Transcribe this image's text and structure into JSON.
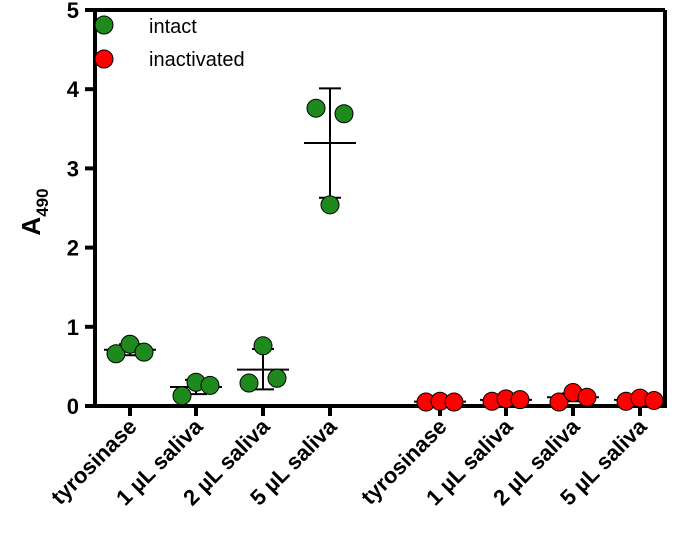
{
  "chart_data": {
    "type": "scatter",
    "ylabel": "A",
    "ylabel_subscript": "490",
    "ylim": [
      0,
      5
    ],
    "yticks": [
      "0",
      "1",
      "2",
      "3",
      "4",
      "5"
    ],
    "legend_position": "top-left",
    "colors": {
      "intact": "#1e8a1e",
      "inactivated": "#ff0000"
    },
    "series": [
      {
        "name": "intact",
        "color": "#1e8a1e"
      },
      {
        "name": "inactivated",
        "color": "#ff0000"
      }
    ],
    "groups": [
      {
        "label": "tyrosinase",
        "series": "intact",
        "points": [
          0.66,
          0.78,
          0.68
        ],
        "mean": 0.71,
        "err_low": 0.64,
        "err_high": 0.78
      },
      {
        "label": "1 µL saliva",
        "series": "intact",
        "points": [
          0.13,
          0.3,
          0.26
        ],
        "mean": 0.24,
        "err_low": 0.15,
        "err_high": 0.33
      },
      {
        "label": "2 µL saliva",
        "series": "intact",
        "points": [
          0.29,
          0.76,
          0.35
        ],
        "mean": 0.46,
        "err_low": 0.21,
        "err_high": 0.72
      },
      {
        "label": "5 µL saliva",
        "series": "intact",
        "points": [
          3.76,
          2.54,
          3.69
        ],
        "mean": 3.32,
        "err_low": 2.63,
        "err_high": 4.01
      },
      {
        "label": "tyrosinase",
        "series": "inactivated",
        "points": [
          0.05,
          0.06,
          0.05
        ],
        "mean": 0.055,
        "err_low": 0.05,
        "err_high": 0.06
      },
      {
        "label": "1 µL saliva",
        "series": "inactivated",
        "points": [
          0.06,
          0.09,
          0.08
        ],
        "mean": 0.077,
        "err_low": 0.06,
        "err_high": 0.095
      },
      {
        "label": "2 µL saliva",
        "series": "inactivated",
        "points": [
          0.05,
          0.17,
          0.11
        ],
        "mean": 0.11,
        "err_low": 0.06,
        "err_high": 0.16
      },
      {
        "label": "5 µL saliva",
        "series": "inactivated",
        "points": [
          0.06,
          0.1,
          0.07
        ],
        "mean": 0.077,
        "err_low": 0.06,
        "err_high": 0.095
      }
    ]
  }
}
